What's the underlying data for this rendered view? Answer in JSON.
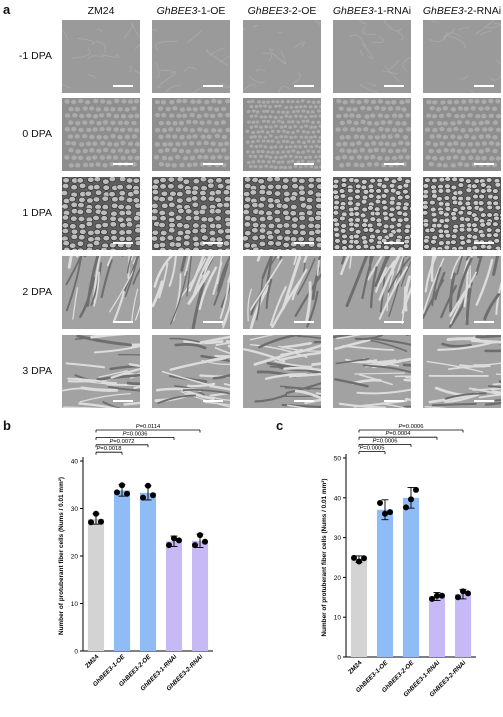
{
  "figure": {
    "panel_a": {
      "letter": "a",
      "columns": [
        {
          "prefix": "",
          "italic": "",
          "plain": "ZM24"
        },
        {
          "prefix": "",
          "italic": "GhBEE3",
          "plain": "-1-OE"
        },
        {
          "prefix": "",
          "italic": "GhBEE3",
          "plain": "-2-OE"
        },
        {
          "prefix": "",
          "italic": "GhBEE3",
          "plain": "-1-RNAi"
        },
        {
          "prefix": "",
          "italic": "GhBEE3",
          "plain": "-2-RNAi"
        }
      ],
      "rows": [
        "-1 DPA",
        "0 DPA",
        "1 DPA",
        "2 DPA",
        "3 DPA"
      ]
    },
    "panel_b": {
      "letter": "b"
    },
    "panel_c": {
      "letter": "c"
    }
  },
  "chart_data": [
    {
      "type": "bar",
      "panel": "b",
      "ylabel": "Number of protuberant fiber cells (Nums / 0.01 mm²)",
      "ylim": [
        0,
        40
      ],
      "yticks": [
        "0",
        "10",
        "20",
        "30",
        "40"
      ],
      "categories": [
        "ZM24",
        "GhBEE3-1-OE",
        "GhBEE3-2-OE",
        "GhBEE3-1-RNAi",
        "GhBEE3-2-RNAi"
      ],
      "values": [
        27.8,
        33.8,
        33.3,
        23.1,
        23.2
      ],
      "errors": [
        1.1,
        1.2,
        1.5,
        1.1,
        1.4
      ],
      "points": [
        [
          27.1,
          28.9,
          27.2
        ],
        [
          33.4,
          34.9,
          33.1
        ],
        [
          32.3,
          34.8,
          32.8
        ],
        [
          22.3,
          23.7,
          23.3
        ],
        [
          22.3,
          24.4,
          23.0
        ]
      ],
      "colors": [
        "#d3d3d3",
        "#8fbcf7",
        "#8fbcf7",
        "#c7b8f6",
        "#c7b8f6"
      ],
      "comparisons": [
        {
          "label": "P=0.0018",
          "to": 1
        },
        {
          "label": "P=0.0072",
          "to": 2
        },
        {
          "label": "P=0.0036",
          "to": 3
        },
        {
          "label": "P=0.0114",
          "to": 4
        }
      ]
    },
    {
      "type": "bar",
      "panel": "c",
      "ylabel": "Number of protuberant fiber cells (Nums / 0.01 mm²)",
      "ylim": [
        0,
        50
      ],
      "yticks": [
        "0",
        "10",
        "20",
        "30",
        "40",
        "50"
      ],
      "categories": [
        "ZM24",
        "GhBEE3-1-OE",
        "GhBEE3-2-OE",
        "GhBEE3-1-RNAi",
        "GhBEE3-2-RNAi"
      ],
      "values": [
        24.6,
        37.0,
        40.0,
        15.2,
        15.8
      ],
      "errors": [
        0.8,
        2.5,
        2.6,
        1.0,
        1.2
      ],
      "points": [
        [
          24.9,
          24.0,
          24.8
        ],
        [
          38.7,
          36.0,
          36.4
        ],
        [
          37.6,
          39.6,
          42.0
        ],
        [
          14.6,
          15.4,
          15.4
        ],
        [
          15.0,
          16.5,
          16.0
        ]
      ],
      "colors": [
        "#d3d3d3",
        "#8fbcf7",
        "#8fbcf7",
        "#c7b8f6",
        "#c7b8f6"
      ],
      "comparisons": [
        {
          "label": "P=0.0005",
          "to": 1
        },
        {
          "label": "P=0.0006",
          "to": 2
        },
        {
          "label": "P=0.0004",
          "to": 3
        },
        {
          "label": "P=0.0006",
          "to": 4
        }
      ]
    }
  ]
}
